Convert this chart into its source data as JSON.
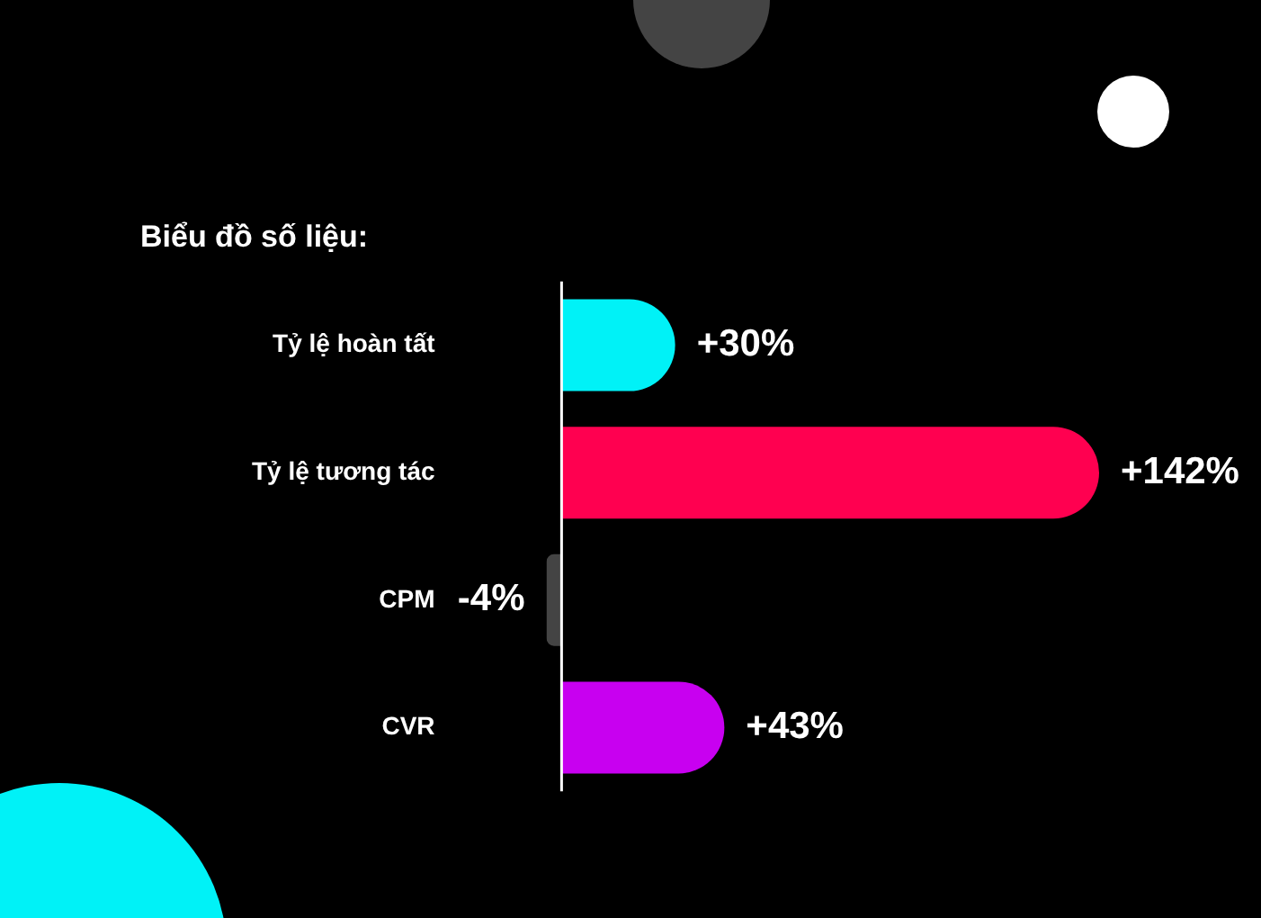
{
  "chart_data": {
    "type": "bar",
    "orientation": "horizontal",
    "title": "Biểu đồ số liệu:",
    "categories": [
      "Tỷ lệ hoàn tất",
      "Tỷ lệ tương tác",
      "CPM",
      "CVR"
    ],
    "values": [
      30,
      142,
      -4,
      43
    ],
    "colors": [
      "#00f2f7",
      "#ff0050",
      "#444444",
      "#c800f0"
    ],
    "value_labels": [
      "+30%",
      "+142%",
      "-4%",
      "+43%"
    ],
    "tick_labels": "y",
    "grid": false,
    "legend": false
  }
}
